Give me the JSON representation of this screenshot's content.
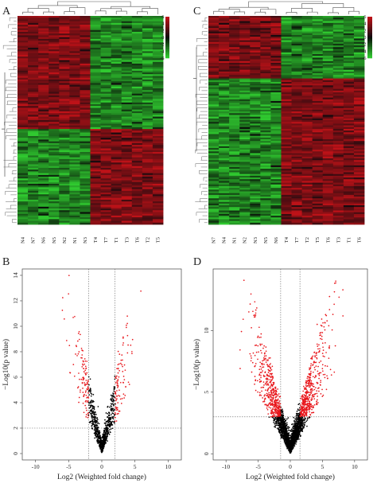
{
  "panels": {
    "A": {
      "label": "A"
    },
    "B": {
      "label": "B"
    },
    "C": {
      "label": "C"
    },
    "D": {
      "label": "D"
    }
  },
  "colors": {
    "red_high": "#c1121f",
    "green_low": "#3fbf3f",
    "black_mid": "#0a0a0a",
    "sig_point": "#e8161b",
    "nonsig_point": "#000000"
  },
  "chart_data": [
    {
      "id": "A",
      "type": "heatmap",
      "columns": [
        "N4",
        "N7",
        "N6",
        "N5",
        "N2",
        "N1",
        "N3",
        "T4",
        "T7",
        "T1",
        "T3",
        "T6",
        "T2",
        "T5"
      ],
      "legend": {
        "ticks": [
          "6",
          "4",
          "2",
          "0",
          "-2",
          "-4",
          "-6"
        ]
      }
    },
    {
      "id": "C",
      "type": "heatmap",
      "columns": [
        "N7",
        "N4",
        "N1",
        "N2",
        "N3",
        "N5",
        "N6",
        "T4",
        "T7",
        "T2",
        "T5",
        "T6",
        "T3",
        "T1",
        "T6"
      ],
      "legend": {
        "ticks": [
          "6",
          "4",
          "2",
          "0",
          "-2",
          "-4",
          "-6"
        ]
      }
    },
    {
      "id": "B",
      "type": "scatter",
      "xlabel": "Log2 (Weighted fold change)",
      "ylabel": "−Log10(p value)",
      "xlim": [
        -12,
        12
      ],
      "ylim": [
        -0.5,
        14.5
      ],
      "xticks": [
        "-10",
        "-5",
        "0",
        "5",
        "10"
      ],
      "yticks": [
        "0",
        "2",
        "4",
        "6",
        "8",
        "10",
        "12",
        "14"
      ],
      "vlines": [
        -2,
        2
      ],
      "hline": 2
    },
    {
      "id": "D",
      "type": "scatter",
      "xlabel": "Log2 (Weighted fold change)",
      "ylabel": "−Log10(p value)",
      "xlim": [
        -12,
        12
      ],
      "ylim": [
        -0.5,
        15
      ],
      "xticks": [
        "-10",
        "-5",
        "0",
        "5",
        "10"
      ],
      "yticks": [
        "0",
        "5",
        "10"
      ],
      "vlines": [
        -1.5,
        1.5
      ],
      "hline": 3
    }
  ]
}
